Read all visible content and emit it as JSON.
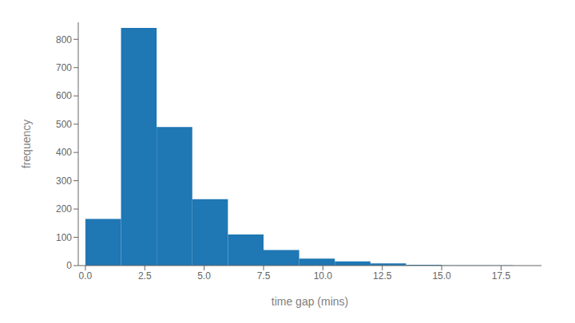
{
  "chart_data": {
    "type": "histogram",
    "xlabel": "time gap (mins)",
    "ylabel": "frequency",
    "bins": [
      0.0,
      1.5,
      3.0,
      4.5,
      6.0,
      7.5,
      9.0,
      10.5,
      12.0,
      13.5,
      15.0,
      16.5,
      18.0
    ],
    "values": [
      165,
      840,
      490,
      235,
      110,
      55,
      25,
      15,
      8,
      3,
      1,
      1
    ],
    "color": "#1f77b4",
    "xlim": [
      -0.3,
      19.2
    ],
    "ylim": [
      0,
      860
    ],
    "xticks": [
      {
        "value": 0,
        "label": "0.0"
      },
      2.5,
      {
        "value": 5,
        "label": "5.0"
      },
      7.5,
      {
        "value": 10,
        "label": "10.0"
      },
      12.5,
      {
        "value": 15,
        "label": "15.0"
      },
      17.5
    ],
    "yticks": [
      0,
      100,
      200,
      300,
      400,
      500,
      600,
      700,
      800
    ],
    "grid": false
  }
}
